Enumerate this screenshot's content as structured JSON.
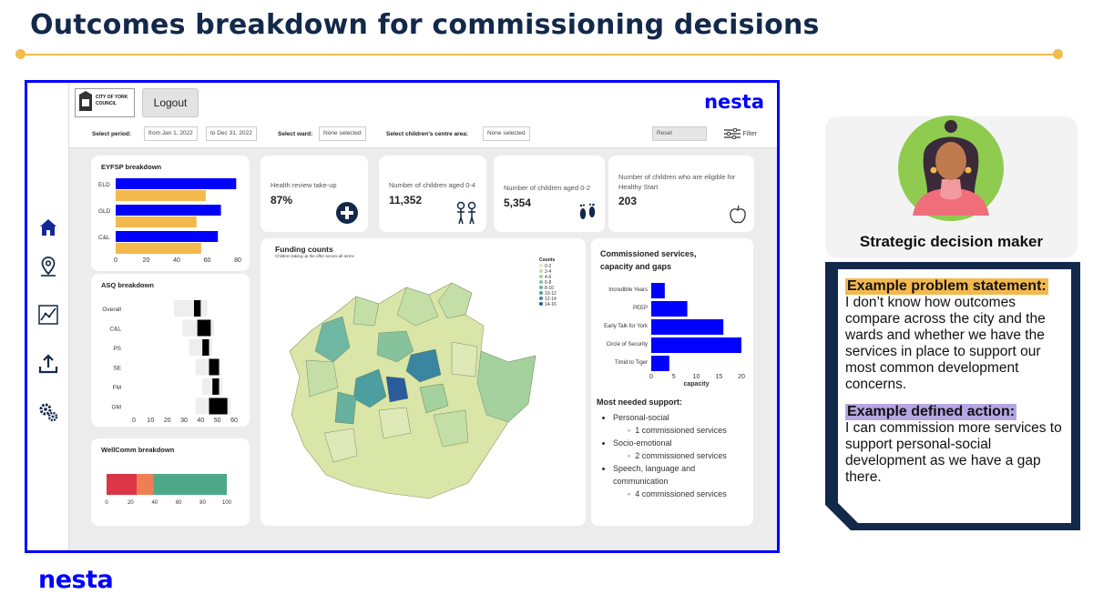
{
  "slide": {
    "title": "Outcomes breakdown for commissioning decisions",
    "footer_logo": "nesta",
    "accent_color": "#f0bd4f",
    "title_color": "#13294b",
    "brand_blue": "#0000ff"
  },
  "dashboard": {
    "header": {
      "council_logo": "CITY OF YORK COUNCIL",
      "logout_label": "Logout",
      "brand": "nesta"
    },
    "sidebar": {
      "icons": [
        "home-icon",
        "map-pin-icon",
        "analytics-icon",
        "upload-icon",
        "settings-icon"
      ]
    },
    "filters": {
      "period_label": "Select period:",
      "period_from": "from Jan 1, 2022",
      "period_to": "to Dec 31, 2022",
      "ward_label": "Select ward:",
      "ward_value": "None selected",
      "centre_label": "Select children's centre area:",
      "centre_value": "None selected",
      "reset_label": "Reset",
      "filter_label": "Filter"
    },
    "kpis": [
      {
        "label": "Health review take-up",
        "value": "87%",
        "icon": "plus-cross-icon"
      },
      {
        "label": "Number of children aged 0-4",
        "value": "11,352",
        "icon": "children-icon"
      },
      {
        "label": "Number of children aged 0-2",
        "value": "5,354",
        "icon": "footprints-icon"
      },
      {
        "label": "Number of children who are eligible for Healthy Start",
        "value": "203",
        "icon": "apple-icon"
      }
    ],
    "map": {
      "title": "Funding counts",
      "subtitle": "Children taking up the offer across all terms",
      "legend_title": "Counts",
      "legend_items": [
        "0-2",
        "2-4",
        "4-6",
        "6-8",
        "8-10",
        "10-12",
        "12-14",
        "14-16"
      ],
      "legend_colors": [
        "#dfe9b8",
        "#c3dea7",
        "#a5d19e",
        "#86c29c",
        "#67b19e",
        "#4c9ea0",
        "#3a85a0",
        "#2a5c9c"
      ]
    },
    "support": {
      "title": "Most needed support:",
      "items": [
        {
          "area": "Personal-social",
          "count": "1 commissioned services"
        },
        {
          "area": "Socio-emotional",
          "count": "2 commissioned services"
        },
        {
          "area": "Speech, language and communication",
          "count": "4 commissioned services"
        }
      ]
    }
  },
  "chart_data": [
    {
      "type": "bar",
      "title": "EYFSP breakdown",
      "orientation": "horizontal",
      "categories": [
        "ELD",
        "GLD",
        "C&L"
      ],
      "series": [
        {
          "values": [
            79,
            69,
            67
          ],
          "color": "#0000ff"
        },
        {
          "values": [
            59,
            53,
            56
          ],
          "color": "#f3b94d"
        }
      ],
      "xlim": [
        0,
        80
      ],
      "xticks": [
        0,
        20,
        40,
        60,
        80
      ]
    },
    {
      "type": "bar",
      "title": "ASQ breakdown",
      "orientation": "horizontal",
      "categories": [
        "Overall",
        "C&L",
        "PS",
        "SE",
        "FM",
        "GM"
      ],
      "ranges": [
        [
          24,
          44
        ],
        [
          29,
          48
        ],
        [
          33,
          47
        ],
        [
          37,
          52
        ],
        [
          41,
          53
        ],
        [
          37,
          58
        ]
      ],
      "markers": [
        [
          36,
          40
        ],
        [
          38,
          46
        ],
        [
          41,
          45
        ],
        [
          45,
          51
        ],
        [
          47,
          51
        ],
        [
          45,
          56
        ]
      ],
      "xlim": [
        0,
        60
      ],
      "xticks": [
        0,
        10,
        20,
        30,
        40,
        50,
        60
      ]
    },
    {
      "type": "bar",
      "title": "WellComm breakdown",
      "orientation": "horizontal",
      "stacked": true,
      "segments": [
        {
          "value": 25,
          "color": "#dc3546"
        },
        {
          "value": 14,
          "color": "#f07e55"
        },
        {
          "value": 61,
          "color": "#4ea88a"
        }
      ],
      "xlim": [
        0,
        100
      ],
      "xticks": [
        0,
        20,
        40,
        60,
        80,
        100
      ]
    },
    {
      "type": "bar",
      "title": "Commissioned services, capacity and gaps",
      "orientation": "horizontal",
      "categories": [
        "Incredible Years",
        "PEEP",
        "Early Talk for York",
        "Circle of Security",
        "Timid to Tiger"
      ],
      "values": [
        3,
        8,
        16,
        20,
        4
      ],
      "color": "#0000ff",
      "xlabel": "capacity",
      "xlim": [
        0,
        20
      ],
      "xticks": [
        0,
        5,
        10,
        15,
        20
      ]
    }
  ],
  "persona": {
    "role": "Strategic decision maker",
    "problem_heading": "Example problem statement:",
    "problem_text": "I don’t know how outcomes compare across the city and the wards and whether we have the services in place to support our most common development concerns.",
    "action_heading": "Example defined action:",
    "action_text": "I can commission more services to support personal-social development as we have a gap there.",
    "problem_highlight": "#f3b94d",
    "action_highlight": "#b6a6e3"
  }
}
